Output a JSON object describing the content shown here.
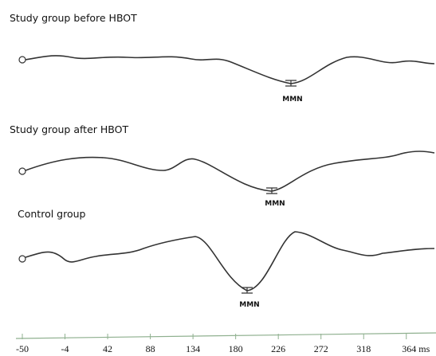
{
  "chart_data": {
    "type": "waveform",
    "panels": [
      {
        "title": "Study group before HBOT",
        "annotation": "MMN"
      },
      {
        "title": "Study group after HBOT",
        "annotation": "MMN"
      },
      {
        "title": "Control group",
        "annotation": "MMN"
      }
    ],
    "xlim": [
      -50,
      396
    ],
    "xticks": [
      -50,
      -4,
      42,
      88,
      134,
      180,
      226,
      272,
      318,
      {
        "value": 364,
        "label": "364 ms"
      }
    ]
  }
}
